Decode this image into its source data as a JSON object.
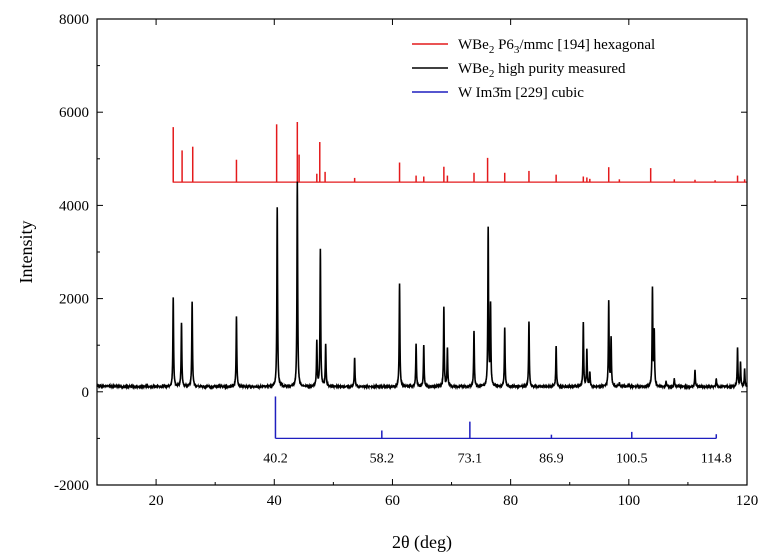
{
  "chart_data": {
    "type": "line",
    "xlabel": "2θ (deg)",
    "ylabel": "Intensity",
    "xlim": [
      10,
      120
    ],
    "ylim": [
      -2000,
      8000
    ],
    "x_ticks": [
      20,
      40,
      60,
      80,
      100,
      120
    ],
    "y_ticks": [
      -2000,
      0,
      2000,
      4000,
      6000,
      8000
    ],
    "x_tick_labels": [
      "20",
      "40",
      "60",
      "80",
      "100",
      "120"
    ],
    "y_tick_labels": [
      "-2000",
      "0",
      "2000",
      "4000",
      "6000",
      "8000"
    ],
    "grid": false,
    "legend_position": "top-right",
    "legend": [
      {
        "main": "WBe",
        "sub": "2",
        "rest": " P6",
        "sub2": "3",
        "rest2": "/mmc [194] hexagonal",
        "color": "#e41a1c"
      },
      {
        "main": "WBe",
        "sub": "2",
        "rest": " high purity measured",
        "sub2": "",
        "rest2": "",
        "color": "#000000"
      },
      {
        "main": "W Im",
        "sub": "",
        "rest": "3̄m [229] cubic",
        "sub2": "",
        "rest2": "",
        "color": "#1f1fbf"
      }
    ],
    "series": [
      {
        "name": "WBe2 P6_3/mmc [194] hexagonal",
        "color": "#e41a1c",
        "style": "sticks",
        "baseline": 4500,
        "x_range": [
          22.8,
          120
        ],
        "peaks": [
          [
            22.9,
            5680
          ],
          [
            24.4,
            5180
          ],
          [
            26.2,
            5260
          ],
          [
            33.6,
            4980
          ],
          [
            40.4,
            5740
          ],
          [
            43.9,
            5790
          ],
          [
            44.2,
            5090
          ],
          [
            47.2,
            4680
          ],
          [
            47.7,
            5360
          ],
          [
            48.6,
            4720
          ],
          [
            53.6,
            4590
          ],
          [
            61.2,
            4920
          ],
          [
            64.0,
            4640
          ],
          [
            65.3,
            4620
          ],
          [
            68.7,
            4830
          ],
          [
            69.3,
            4640
          ],
          [
            73.8,
            4700
          ],
          [
            76.1,
            5020
          ],
          [
            79.0,
            4700
          ],
          [
            83.1,
            4740
          ],
          [
            87.7,
            4660
          ],
          [
            92.3,
            4620
          ],
          [
            92.9,
            4600
          ],
          [
            93.4,
            4570
          ],
          [
            96.6,
            4820
          ],
          [
            98.4,
            4560
          ],
          [
            103.7,
            4800
          ],
          [
            107.7,
            4560
          ],
          [
            111.2,
            4550
          ],
          [
            114.6,
            4540
          ],
          [
            118.4,
            4640
          ],
          [
            119.6,
            4560
          ]
        ]
      },
      {
        "name": "WBe2 high purity measured",
        "color": "#000000",
        "style": "pattern",
        "background": 110,
        "x_range": [
          10,
          120
        ],
        "peaks": [
          [
            22.9,
            2010
          ],
          [
            24.3,
            1480
          ],
          [
            26.1,
            1940
          ],
          [
            33.6,
            1610
          ],
          [
            40.5,
            3950
          ],
          [
            43.9,
            4500
          ],
          [
            47.2,
            1070
          ],
          [
            47.8,
            3040
          ],
          [
            48.7,
            1020
          ],
          [
            53.6,
            730
          ],
          [
            58.0,
            120
          ],
          [
            61.2,
            2320
          ],
          [
            64.0,
            1020
          ],
          [
            65.3,
            1000
          ],
          [
            68.7,
            1820
          ],
          [
            69.3,
            920
          ],
          [
            73.8,
            1310
          ],
          [
            76.2,
            3490
          ],
          [
            76.6,
            1850
          ],
          [
            79.0,
            1380
          ],
          [
            83.1,
            1520
          ],
          [
            87.7,
            980
          ],
          [
            92.3,
            1480
          ],
          [
            92.9,
            900
          ],
          [
            93.4,
            420
          ],
          [
            96.6,
            1930
          ],
          [
            97.0,
            1150
          ],
          [
            98.4,
            200
          ],
          [
            99.9,
            160
          ],
          [
            104.0,
            2200
          ],
          [
            104.3,
            1270
          ],
          [
            106.3,
            220
          ],
          [
            107.7,
            280
          ],
          [
            111.2,
            460
          ],
          [
            114.8,
            270
          ],
          [
            118.4,
            930
          ],
          [
            118.9,
            620
          ],
          [
            119.6,
            480
          ]
        ]
      },
      {
        "name": "W Im3m [229] cubic",
        "color": "#1f1fbf",
        "style": "sticks",
        "baseline": -1000,
        "x_range": [
          40.2,
          114.8
        ],
        "peaks": [
          [
            40.2,
            -100
          ],
          [
            58.2,
            -830
          ],
          [
            73.1,
            -640
          ],
          [
            86.9,
            -920
          ],
          [
            100.5,
            -860
          ],
          [
            114.8,
            -910
          ]
        ]
      }
    ],
    "annotations": [
      "40.2",
      "58.2",
      "73.1",
      "86.9",
      "100.5",
      "114.8"
    ]
  }
}
